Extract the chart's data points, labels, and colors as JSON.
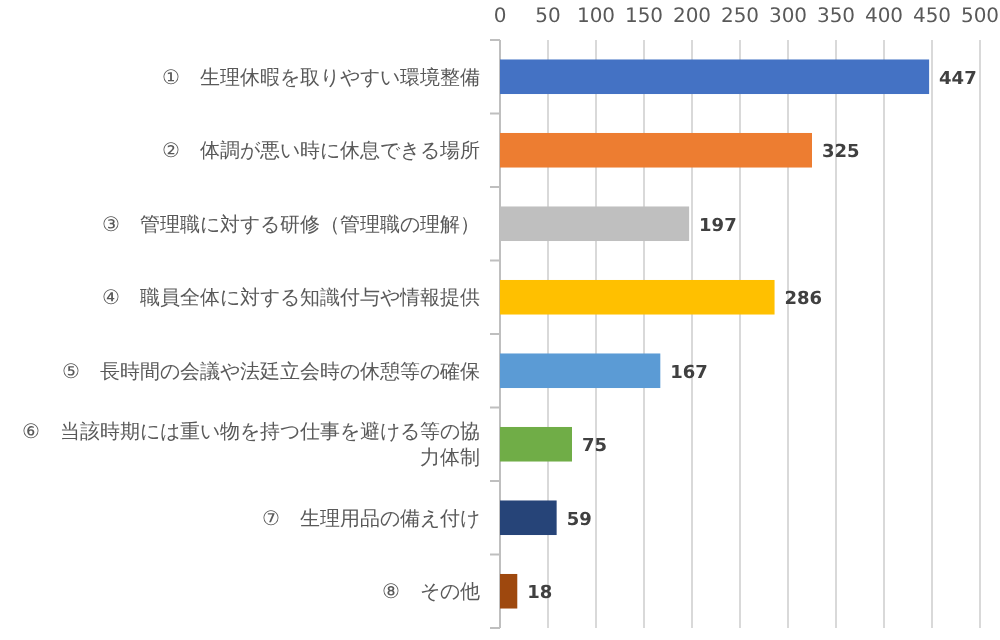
{
  "chart_data": {
    "type": "bar",
    "orientation": "horizontal",
    "categories": [
      "①　生理休暇を取りやすい環境整備",
      "②　体調が悪い時に休息できる場所",
      "③　管理職に対する研修（管理職の理解）",
      "④　職員全体に対する知識付与や情報提供",
      "⑤　長時間の会議や法廷立会時の休憩等の確保",
      "⑥　当該時期には重い物を持つ仕事を避ける等の協力体制",
      "⑦　生理用品の備え付け",
      "⑧　その他"
    ],
    "values": [
      447,
      325,
      197,
      286,
      167,
      75,
      59,
      18
    ],
    "colors": [
      "#4472c4",
      "#ed7d31",
      "#bfbfbf",
      "#ffc000",
      "#5b9bd5",
      "#70ad47",
      "#264478",
      "#9e480e"
    ],
    "xlim": [
      0,
      500
    ],
    "xticks": [
      0,
      50,
      100,
      150,
      200,
      250,
      300,
      350,
      400,
      450,
      500
    ],
    "grid": "x",
    "data_labels": true
  }
}
